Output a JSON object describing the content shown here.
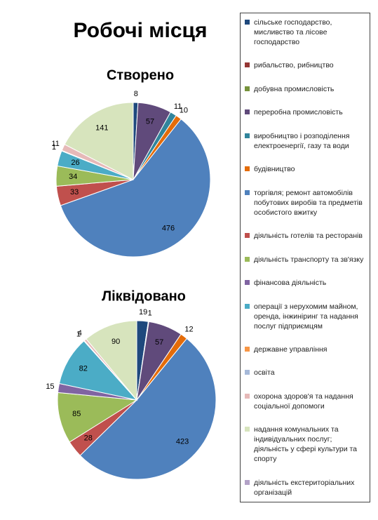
{
  "title": "Робочі місця",
  "categories": [
    "сільське господарство, мисливство та лісове господарство",
    "рибальство, рибництво",
    "добувна промисловість",
    "переробна промисловість",
    "виробництво і розподілення електроенергії, газу та води",
    "будівництво",
    "торгівля; ремонт автомобілів побутових виробів та предметів особистого вжитку",
    "діяльність готелів та ресторанів",
    "діяльність транспорту та зв'язку",
    "фінансова діяльність",
    "операції з нерухомим майном, оренда, інжиніринг та надання послуг підприємцям",
    "державне управління",
    "освіта",
    "охорона здоров'я та надання соціальної допомоги",
    "надання комунальних та індивідуальних послуг; діяльність у сфері культури та спорту",
    "діяльність екстериторіальних організацій"
  ],
  "colors": [
    "#1f497d",
    "#953735",
    "#77933c",
    "#604a7b",
    "#31859c",
    "#e46c0a",
    "#4f81bd",
    "#c0504d",
    "#9bbb59",
    "#8064a2",
    "#4bacc6",
    "#f79646",
    "#a6b9d9",
    "#e6b9b8",
    "#d7e4bd",
    "#b3a2c7"
  ],
  "chart_data": [
    {
      "type": "pie",
      "title": "Створено",
      "values": [
        8,
        null,
        null,
        57,
        11,
        10,
        476,
        33,
        34,
        null,
        26,
        null,
        1,
        11,
        141,
        null
      ]
    },
    {
      "type": "pie",
      "title": "Ліквідовано",
      "values": [
        19,
        1,
        null,
        57,
        null,
        12,
        423,
        28,
        85,
        15,
        82,
        null,
        1,
        4,
        90,
        null
      ]
    }
  ]
}
